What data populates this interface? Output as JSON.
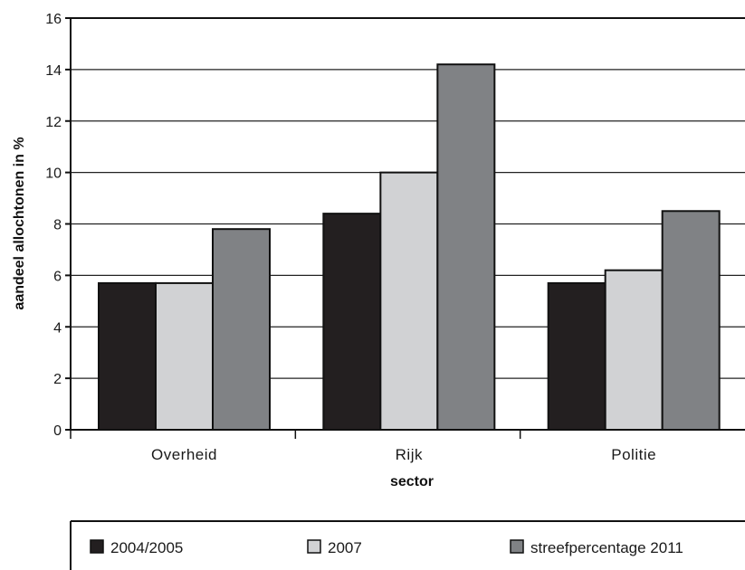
{
  "chart_data": {
    "type": "bar",
    "categories": [
      "Overheid",
      "Rijk",
      "Politie"
    ],
    "series": [
      {
        "name": "2004/2005",
        "values": [
          5.7,
          8.4,
          5.7
        ],
        "color": "#231f20"
      },
      {
        "name": "2007",
        "values": [
          5.7,
          10.0,
          6.2
        ],
        "color": "#d1d2d4"
      },
      {
        "name": "streefpercentage 2011",
        "values": [
          7.8,
          14.2,
          8.5
        ],
        "color": "#808285"
      }
    ],
    "xlabel": "sector",
    "ylabel": "aandeel allochtonen in %",
    "ylim": [
      0,
      16
    ],
    "yticks": [
      0,
      2,
      4,
      6,
      8,
      10,
      12,
      14,
      16
    ],
    "grid": true,
    "legend_position": "bottom"
  }
}
